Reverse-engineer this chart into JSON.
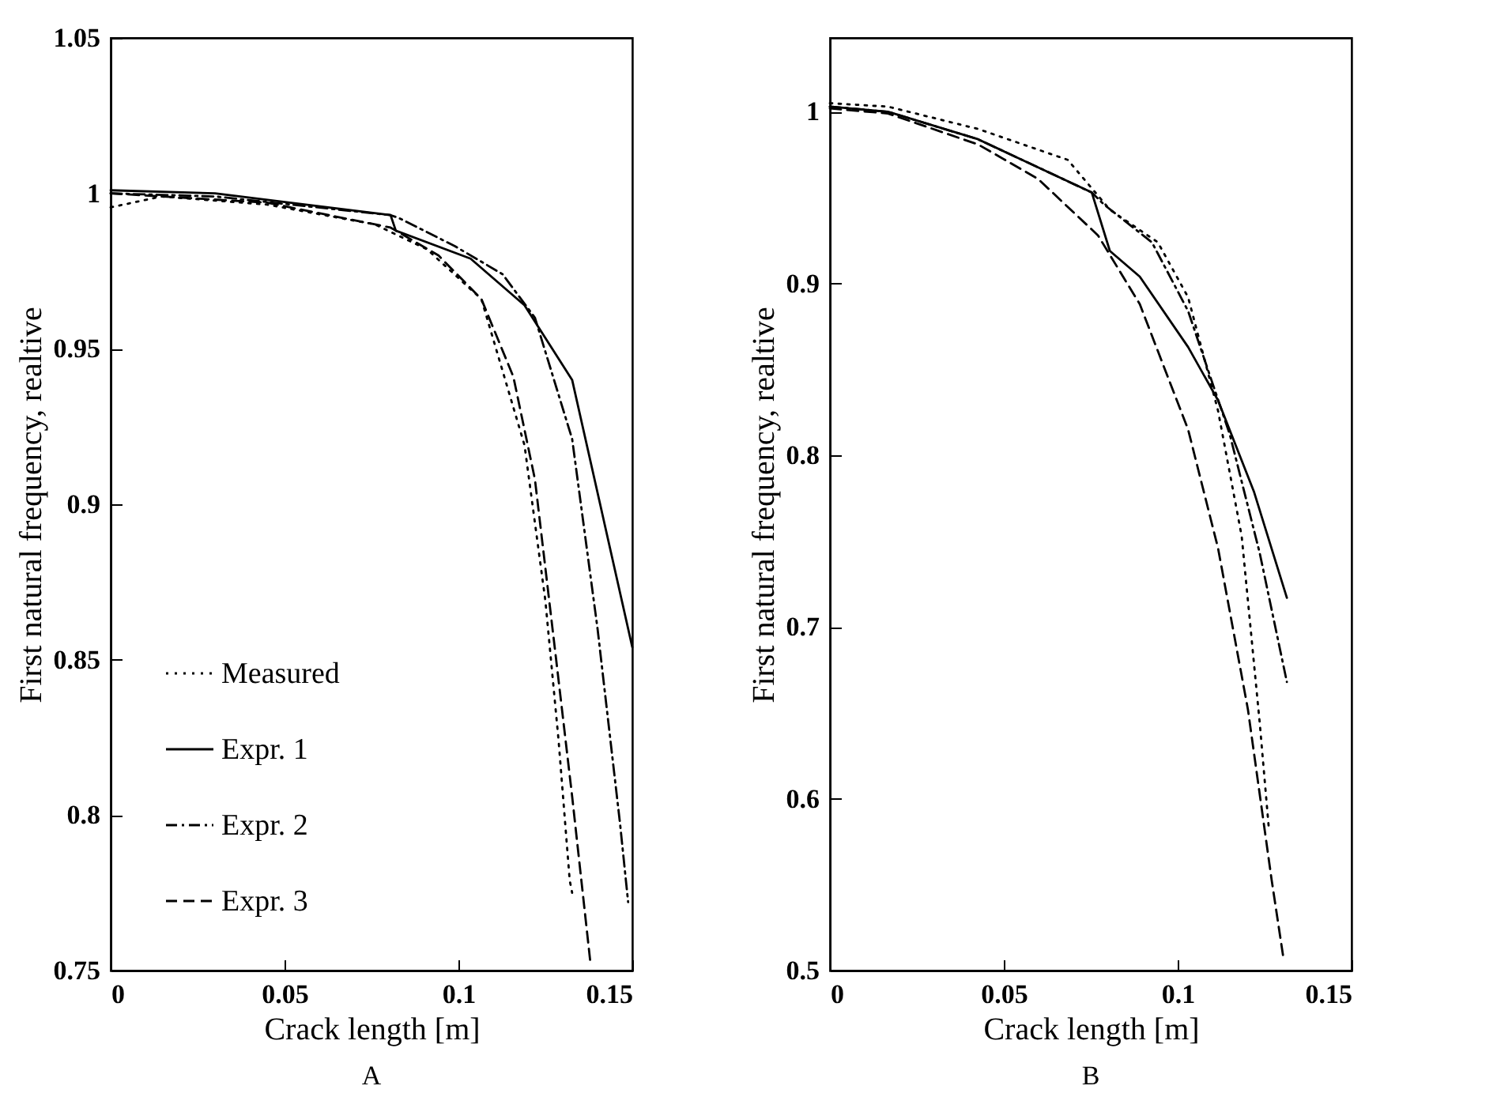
{
  "chart_data": [
    {
      "type": "line",
      "title": "A",
      "xlabel": "Crack length [m]",
      "ylabel": "First natural frequency, realtive",
      "xlim": [
        0,
        0.15
      ],
      "xticks": [
        0,
        0.05,
        0.1,
        0.15
      ],
      "ylim": [
        0.75,
        1.05
      ],
      "yticks": [
        0.75,
        0.8,
        0.85,
        0.9,
        0.95,
        1,
        1.05
      ],
      "legend": "bottom left",
      "grid": false,
      "marker": "none",
      "series": [
        {
          "name": "Measured",
          "color": "#000000",
          "line_style": "dotted",
          "x": [
            0,
            0.0146,
            0.045,
            0.076,
            0.091,
            0.1066,
            0.119,
            0.125,
            0.1288,
            0.132,
            0.1327
          ],
          "values": [
            0.9955,
            0.999,
            0.9964,
            0.99,
            0.982,
            0.966,
            0.919,
            0.869,
            0.824,
            0.779,
            0.775
          ]
        },
        {
          "name": "Expr. 1",
          "color": "#000000",
          "line_style": "solid",
          "x": [
            0,
            0.03,
            0.0805,
            0.082,
            0.1035,
            0.119,
            0.1327,
            0.15
          ],
          "values": [
            1.001,
            1.0,
            0.993,
            0.988,
            0.979,
            0.964,
            0.94,
            0.854
          ]
        },
        {
          "name": "Expr. 2",
          "color": "#000000",
          "line_style": "dashdot",
          "x": [
            0,
            0.03,
            0.0805,
            0.083,
            0.099,
            0.1127,
            0.122,
            0.1327,
            0.14,
            0.1465,
            0.1488
          ],
          "values": [
            1.0,
            0.999,
            0.993,
            0.992,
            0.983,
            0.974,
            0.96,
            0.921,
            0.86,
            0.797,
            0.772
          ]
        },
        {
          "name": "Expr. 3",
          "color": "#000000",
          "line_style": "dashed",
          "x": [
            0,
            0.045,
            0.0805,
            0.0943,
            0.1066,
            0.1158,
            0.122,
            0.128,
            0.1327,
            0.138
          ],
          "values": [
            1.0,
            0.997,
            0.989,
            0.98,
            0.966,
            0.941,
            0.908,
            0.851,
            0.806,
            0.752
          ]
        }
      ]
    },
    {
      "type": "line",
      "title": "B",
      "xlabel": "Crack length [m]",
      "ylabel": "First natural frequency, realtive",
      "xlim": [
        0,
        0.15
      ],
      "xticks": [
        0,
        0.05,
        0.1,
        0.15
      ],
      "ylim": [
        0.5,
        1.043
      ],
      "yticks": [
        0.5,
        0.6,
        0.7,
        0.8,
        0.9,
        1
      ],
      "legend": "bottom left",
      "grid": false,
      "marker": "none",
      "series": [
        {
          "name": "Measured",
          "color": "#000000",
          "line_style": "dotted",
          "x": [
            0,
            0.0167,
            0.0426,
            0.0684,
            0.0805,
            0.0943,
            0.103,
            0.1116,
            0.1184,
            0.1236,
            0.1262
          ],
          "values": [
            1.005,
            1.003,
            0.99,
            0.972,
            0.943,
            0.924,
            0.892,
            0.826,
            0.753,
            0.644,
            0.583
          ]
        },
        {
          "name": "Expr. 1",
          "color": "#000000",
          "line_style": "solid",
          "x": [
            0,
            0.0167,
            0.0426,
            0.0753,
            0.0805,
            0.0891,
            0.103,
            0.1116,
            0.1219,
            0.1314
          ],
          "values": [
            1.003,
            1.0,
            0.984,
            0.953,
            0.919,
            0.904,
            0.863,
            0.832,
            0.779,
            0.717
          ]
        },
        {
          "name": "Expr. 2",
          "color": "#000000",
          "line_style": "dashdot",
          "x": [
            0,
            0.0167,
            0.0426,
            0.0753,
            0.0788,
            0.0926,
            0.103,
            0.115,
            0.1236,
            0.1314
          ],
          "values": [
            1.003,
            1.0,
            0.984,
            0.953,
            0.946,
            0.924,
            0.884,
            0.812,
            0.743,
            0.668
          ]
        },
        {
          "name": "Expr. 3",
          "color": "#000000",
          "line_style": "dashed",
          "x": [
            0,
            0.0167,
            0.0426,
            0.0598,
            0.0771,
            0.0891,
            0.103,
            0.1116,
            0.1202,
            0.127,
            0.1305
          ],
          "values": [
            1.002,
            0.999,
            0.981,
            0.961,
            0.928,
            0.888,
            0.815,
            0.746,
            0.652,
            0.553,
            0.506
          ]
        }
      ]
    }
  ]
}
